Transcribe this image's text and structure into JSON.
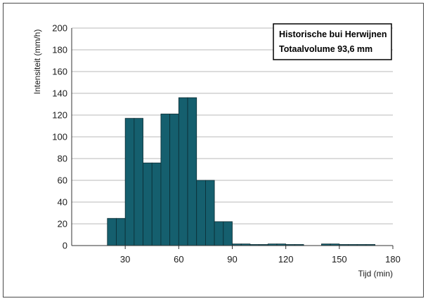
{
  "chart_data": {
    "type": "bar",
    "title": "",
    "xlabel": "Tijd (min)",
    "ylabel": "Intensiteit (mm/h)",
    "annotation": [
      "Historische bui Herwijnen",
      "Totaalvolume 93,6 mm"
    ],
    "xlim": [
      0,
      180
    ],
    "ylim": [
      0,
      200
    ],
    "xticks": [
      30,
      60,
      90,
      120,
      150,
      180
    ],
    "yticks": [
      0,
      20,
      40,
      60,
      80,
      100,
      120,
      140,
      160,
      180,
      200
    ],
    "bin_width_min": 5,
    "bins_start": [
      20,
      25,
      30,
      35,
      40,
      45,
      50,
      55,
      60,
      65,
      70,
      75,
      80,
      85,
      90,
      95,
      100,
      105,
      110,
      115,
      120,
      125,
      130,
      135,
      140,
      145,
      150,
      155,
      160,
      165
    ],
    "values": [
      25,
      25,
      117,
      117,
      76,
      76,
      121,
      121,
      136,
      136,
      60,
      60,
      22,
      22,
      1.5,
      1.5,
      1,
      1,
      1.5,
      1.5,
      1,
      1,
      0,
      0,
      1.5,
      1.5,
      1,
      1,
      1,
      1
    ],
    "grid": "horizontal",
    "legend": "top-right",
    "bar_color": "#155f6e",
    "bar_edge_color": "#0c2c33"
  }
}
